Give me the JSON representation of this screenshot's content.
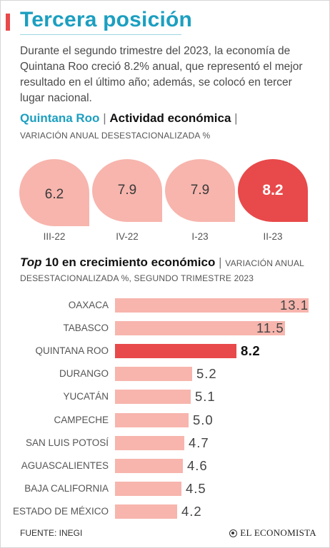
{
  "header": {
    "title": "Tercera posición",
    "intro": "Durante el segundo trimestre del 2023, la economía de Quintana Roo creció 8.2% anual, que representó el mejor resultado en el último año; además, se colocó en tercer lugar nacional."
  },
  "colors": {
    "accent_red": "#e8494a",
    "title_blue": "#1c9fc0",
    "bar_pink": "#f7b5ad"
  },
  "chart_data": [
    {
      "type": "bar",
      "title_place": "Quintana Roo",
      "title_topic": "Actividad económica",
      "subtitle": "VARIACIÓN ANUAL DESESTACIONALIZADA %",
      "categories": [
        "III-22",
        "IV-22",
        "I-23",
        "II-23"
      ],
      "values": [
        6.2,
        7.9,
        7.9,
        8.2
      ],
      "value_labels": [
        "6.2",
        "7.9",
        "7.9",
        "8.2"
      ],
      "highlight_index": 3
    },
    {
      "type": "bar",
      "title_em": "Top",
      "title_rest": "10 en crecimiento económico",
      "subtitle": "VARIACIÓN ANUAL DESESTACIONALIZADA %, SEGUNDO TRIMESTRE 2023",
      "orientation": "horizontal",
      "categories": [
        "OAXACA",
        "TABASCO",
        "QUINTANA ROO",
        "DURANGO",
        "YUCATÁN",
        "CAMPECHE",
        "SAN LUIS POTOSÍ",
        "AGUASCALIENTES",
        "BAJA CALIFORNIA",
        "ESTADO DE MÉXICO"
      ],
      "values": [
        13.1,
        11.5,
        8.2,
        5.2,
        5.1,
        5.0,
        4.7,
        4.6,
        4.5,
        4.2
      ],
      "value_labels": [
        "13.1",
        "11.5",
        "8.2",
        "5.2",
        "5.1",
        "5.0",
        "4.7",
        "4.6",
        "4.5",
        "4.2"
      ],
      "highlight_index": 2
    }
  ],
  "footer": {
    "source": "FUENTE: INEGI",
    "brand": "EL ECONOMISTA"
  }
}
